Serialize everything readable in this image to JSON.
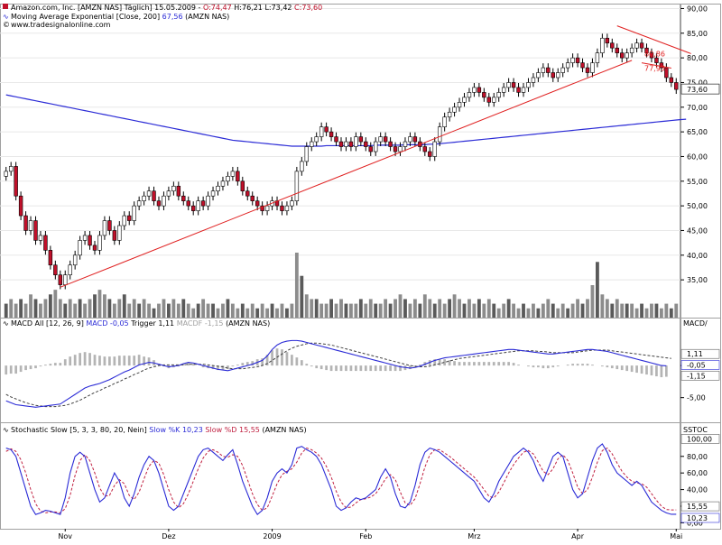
{
  "header": {
    "main_title_prefix": "Amazon.com, Inc. [AMZN NAS]  Täglich] 15.05.2009 - ",
    "main_o": "O:74,47",
    "main_h": "H:76,21",
    "main_l": "L:73,42",
    "main_c": "C:73,60",
    "ema_label": "Moving Average Exponential [Close, 200]",
    "ema_value": "67,56",
    "ema_symbol": "(AMZN NAS)",
    "website": "www.tradesignalonline.com",
    "macd_label": "MACD All [12, 26, 9]",
    "macd_value": "MACD -0,05",
    "macd_trigger": "Trigger 1,11",
    "macd_macdf": "MACDF -1,15",
    "macd_symbol": "(AMZN NAS)",
    "stoch_label": "Stochastic Slow [5, 3, 3, 80, 20, Nein]",
    "stoch_k": "Slow %K 10,23",
    "stoch_d": "Slow %D 15,55",
    "stoch_symbol": "(AMZN NAS)",
    "macd_axis_title": "MACD/",
    "stoch_axis_title": "SSTOC"
  },
  "colors": {
    "up_candle": "#ffffff",
    "down_candle": "#c0102a",
    "candle_outline": "#000000",
    "ema_line": "#2b2bd6",
    "trend_line": "#e02020",
    "macd_line": "#2b2bd6",
    "trigger_line": "#404040",
    "stoch_k": "#2b2bd6",
    "stoch_d": "#c02040",
    "volume_bar": "#808080"
  },
  "chart_data": [
    {
      "type": "candlestick",
      "title": "Amazon.com, Inc. [AMZN NAS] Täglich",
      "x_labels": [
        "Nov",
        "Dez",
        "2009",
        "Feb",
        "Mrz",
        "Apr",
        "Mai"
      ],
      "x_label_positions": [
        12,
        33,
        54,
        73,
        95,
        116,
        136
      ],
      "y_ticks": [
        35,
        40,
        45,
        50,
        55,
        60,
        65,
        70,
        75,
        80,
        85,
        90
      ],
      "y_tick_labels": [
        "35,00",
        "40,00",
        "45,00",
        "50,00",
        "55,00",
        "60,00",
        "65,00",
        "70,00",
        "75,00",
        "80,00",
        "85,00",
        "90,00"
      ],
      "ylim": [
        31,
        91
      ],
      "last_price_label": "73,60",
      "annotations": [
        {
          "text": "80,86",
          "value": 80.86
        },
        {
          "text": "77,93",
          "value": 77.93
        }
      ],
      "close": [
        57,
        58,
        52,
        48,
        45,
        47,
        43,
        44,
        41,
        38,
        36,
        34,
        36,
        38,
        40,
        43,
        44,
        42,
        41,
        44,
        47,
        45,
        43,
        46,
        48,
        47,
        50,
        51,
        52,
        53,
        51,
        50,
        52,
        53,
        54,
        52,
        51,
        50,
        49,
        51,
        50,
        52,
        53,
        54,
        55,
        56,
        57,
        55,
        53,
        52,
        51,
        50,
        49,
        50,
        51,
        50,
        49,
        50,
        51,
        57,
        59,
        62,
        63,
        64,
        66,
        65,
        64,
        63,
        62,
        63,
        62,
        64,
        63,
        62,
        61,
        63,
        64,
        63,
        62,
        61,
        62,
        63,
        64,
        63,
        62,
        61,
        60,
        63,
        66,
        68,
        69,
        70,
        71,
        72,
        73,
        74,
        73,
        72,
        71,
        72,
        73,
        74,
        75,
        74,
        73,
        74,
        75,
        76,
        77,
        78,
        77,
        76,
        77,
        78,
        79,
        80,
        79,
        78,
        77,
        79,
        81,
        84,
        83,
        82,
        81,
        80,
        81,
        82,
        83,
        82,
        81,
        80,
        79,
        78,
        76,
        75,
        73.6
      ],
      "volume": [
        3,
        4,
        3,
        4,
        3,
        5,
        4,
        3,
        4,
        5,
        6,
        4,
        3,
        4,
        3,
        4,
        3,
        4,
        5,
        6,
        5,
        4,
        3,
        4,
        5,
        3,
        4,
        3,
        4,
        3,
        2,
        3,
        4,
        3,
        4,
        3,
        4,
        3,
        2,
        3,
        4,
        3,
        3,
        2,
        3,
        4,
        3,
        2,
        3,
        2,
        3,
        2,
        3,
        2,
        3,
        2,
        3,
        2,
        3,
        14,
        9,
        5,
        4,
        4,
        3,
        3,
        4,
        3,
        4,
        3,
        3,
        3,
        4,
        3,
        4,
        3,
        3,
        4,
        3,
        4,
        5,
        4,
        3,
        4,
        3,
        5,
        4,
        3,
        4,
        3,
        4,
        5,
        4,
        3,
        4,
        3,
        4,
        3,
        4,
        3,
        2,
        3,
        4,
        3,
        2,
        3,
        2,
        3,
        2,
        3,
        4,
        3,
        2,
        3,
        2,
        3,
        4,
        3,
        4,
        7,
        12,
        5,
        4,
        3,
        4,
        3,
        3,
        3,
        2,
        3,
        2,
        3,
        3,
        2,
        3,
        2,
        3
      ],
      "ema200_series_name": "Moving Average Exponential [Close, 200]",
      "ema200": [
        72.5,
        72.3,
        72.1,
        71.9,
        71.7,
        71.5,
        71.3,
        71.1,
        70.9,
        70.7,
        70.5,
        70.3,
        70.1,
        69.9,
        69.7,
        69.5,
        69.3,
        69.1,
        68.9,
        68.7,
        68.5,
        68.3,
        68.1,
        67.9,
        67.7,
        67.5,
        67.3,
        67.1,
        66.9,
        66.7,
        66.5,
        66.3,
        66.1,
        65.9,
        65.7,
        65.5,
        65.3,
        65.1,
        64.9,
        64.7,
        64.5,
        64.3,
        64.1,
        63.9,
        63.7,
        63.5,
        63.3,
        63.2,
        63.1,
        63.0,
        62.9,
        62.8,
        62.7,
        62.6,
        62.5,
        62.4,
        62.3,
        62.2,
        62.1,
        62.1,
        62.1,
        62.1,
        62.1,
        62.1,
        62.1,
        62.2,
        62.2,
        62.2,
        62.2,
        62.2,
        62.2,
        62.2,
        62.2,
        62.2,
        62.2,
        62.3,
        62.3,
        62.3,
        62.3,
        62.3,
        62.3,
        62.4,
        62.4,
        62.4,
        62.4,
        62.4,
        62.5,
        62.5,
        62.6,
        62.7,
        62.8,
        62.9,
        63.0,
        63.1,
        63.2,
        63.3,
        63.4,
        63.5,
        63.6,
        63.7,
        63.8,
        63.9,
        64.0,
        64.1,
        64.2,
        64.3,
        64.4,
        64.5,
        64.6,
        64.7,
        64.8,
        64.9,
        65.0,
        65.1,
        65.2,
        65.3,
        65.4,
        65.5,
        65.6,
        65.7,
        65.8,
        65.9,
        66.0,
        66.1,
        66.2,
        66.3,
        66.4,
        66.5,
        66.6,
        66.7,
        66.8,
        66.9,
        67.0,
        67.1,
        67.2,
        67.3,
        67.4,
        67.5,
        67.56
      ],
      "trendlines": [
        {
          "x1": 11,
          "y1": 33.5,
          "x2": 127,
          "y2": 79.5
        },
        {
          "x1": 124,
          "y1": 86.5,
          "x2": 139,
          "y2": 80.86
        },
        {
          "x1": 129,
          "y1": 79.0,
          "x2": 135,
          "y2": 77.93
        }
      ]
    },
    {
      "type": "line",
      "title": "MACD All [12, 26, 9]",
      "y_ticks": [
        -5,
        0
      ],
      "y_tick_labels": [
        "-5,00",
        "0"
      ],
      "ylim": [
        -8,
        5.5
      ],
      "value_labels": [
        "1,11",
        "-0,05",
        "-1,15"
      ],
      "series": [
        {
          "name": "MACD",
          "values": [
            -5.5,
            -5.8,
            -6.1,
            -6.2,
            -6.3,
            -6.4,
            -6.5,
            -6.4,
            -6.3,
            -6.2,
            -6.1,
            -6.0,
            -5.5,
            -5.0,
            -4.5,
            -4.0,
            -3.5,
            -3.2,
            -3.0,
            -2.8,
            -2.5,
            -2.2,
            -1.8,
            -1.4,
            -1.0,
            -0.7,
            -0.3,
            0.1,
            0.3,
            0.5,
            0.4,
            0.2,
            0.0,
            -0.2,
            -0.1,
            0.0,
            0.3,
            0.5,
            0.4,
            0.2,
            0.0,
            -0.2,
            -0.4,
            -0.6,
            -0.7,
            -0.8,
            -0.6,
            -0.4,
            -0.2,
            0.0,
            0.2,
            0.5,
            0.8,
            1.5,
            2.5,
            3.2,
            3.6,
            3.8,
            3.9,
            3.9,
            3.8,
            3.6,
            3.4,
            3.2,
            3.0,
            2.8,
            2.6,
            2.4,
            2.2,
            2.0,
            1.8,
            1.6,
            1.4,
            1.2,
            1.0,
            0.8,
            0.6,
            0.4,
            0.2,
            0.0,
            -0.2,
            -0.3,
            -0.4,
            -0.3,
            -0.1,
            0.2,
            0.5,
            0.8,
            1.0,
            1.2,
            1.3,
            1.4,
            1.5,
            1.6,
            1.7,
            1.8,
            1.9,
            2.0,
            2.1,
            2.2,
            2.3,
            2.4,
            2.5,
            2.5,
            2.4,
            2.3,
            2.2,
            2.1,
            2.0,
            1.9,
            1.8,
            1.8,
            1.9,
            2.0,
            2.1,
            2.2,
            2.3,
            2.4,
            2.5,
            2.5,
            2.4,
            2.3,
            2.2,
            2.0,
            1.8,
            1.6,
            1.4,
            1.2,
            1.0,
            0.8,
            0.6,
            0.4,
            0.2,
            0.0,
            -0.05
          ]
        },
        {
          "name": "Trigger",
          "values": [
            -4.5,
            -4.9,
            -5.2,
            -5.5,
            -5.8,
            -6.0,
            -6.2,
            -6.3,
            -6.4,
            -6.4,
            -6.4,
            -6.3,
            -6.2,
            -6.0,
            -5.7,
            -5.4,
            -5.0,
            -4.6,
            -4.2,
            -3.9,
            -3.5,
            -3.2,
            -2.8,
            -2.5,
            -2.1,
            -1.8,
            -1.4,
            -1.1,
            -0.7,
            -0.4,
            -0.2,
            0.0,
            0.1,
            0.1,
            0.1,
            0.1,
            0.1,
            0.2,
            0.2,
            0.2,
            0.2,
            0.1,
            0.0,
            -0.1,
            -0.2,
            -0.4,
            -0.5,
            -0.5,
            -0.5,
            -0.4,
            -0.3,
            -0.2,
            0.0,
            0.3,
            0.8,
            1.3,
            1.8,
            2.3,
            2.7,
            3.0,
            3.2,
            3.4,
            3.5,
            3.5,
            3.4,
            3.3,
            3.2,
            3.0,
            2.8,
            2.6,
            2.4,
            2.2,
            2.0,
            1.8,
            1.6,
            1.4,
            1.2,
            1.0,
            0.8,
            0.6,
            0.4,
            0.2,
            0.0,
            -0.1,
            -0.2,
            -0.2,
            -0.1,
            0.1,
            0.3,
            0.5,
            0.7,
            0.9,
            1.1,
            1.2,
            1.3,
            1.4,
            1.5,
            1.6,
            1.7,
            1.8,
            1.9,
            2.0,
            2.1,
            2.2,
            2.3,
            2.3,
            2.3,
            2.3,
            2.2,
            2.2,
            2.1,
            2.0,
            2.0,
            2.0,
            2.0,
            2.0,
            2.1,
            2.2,
            2.3,
            2.4,
            2.4,
            2.4,
            2.4,
            2.3,
            2.2,
            2.1,
            2.0,
            1.9,
            1.8,
            1.7,
            1.6,
            1.5,
            1.4,
            1.3,
            1.2,
            1.11
          ]
        }
      ]
    },
    {
      "type": "line",
      "title": "Stochastic Slow [5, 3, 3, 80, 20, Nein]",
      "y_ticks": [
        0,
        20,
        40,
        60,
        80
      ],
      "y_tick_labels": [
        "0,00",
        "20,00",
        "40,00",
        "60,00",
        "80,00"
      ],
      "ylim": [
        -5,
        108
      ],
      "value_labels": [
        "100,00",
        "15,55",
        "10,23"
      ],
      "series": [
        {
          "name": "Slow %K",
          "values": [
            90,
            88,
            80,
            60,
            40,
            20,
            10,
            12,
            15,
            14,
            12,
            10,
            30,
            60,
            80,
            85,
            80,
            60,
            40,
            25,
            30,
            45,
            60,
            50,
            30,
            20,
            35,
            55,
            70,
            80,
            75,
            60,
            40,
            20,
            15,
            20,
            35,
            50,
            65,
            80,
            88,
            90,
            85,
            80,
            75,
            82,
            88,
            70,
            50,
            35,
            20,
            10,
            15,
            30,
            50,
            60,
            65,
            60,
            70,
            90,
            92,
            88,
            85,
            80,
            70,
            55,
            40,
            20,
            15,
            18,
            25,
            30,
            28,
            30,
            35,
            40,
            55,
            65,
            55,
            35,
            20,
            18,
            25,
            45,
            70,
            85,
            90,
            88,
            85,
            80,
            75,
            70,
            65,
            60,
            55,
            50,
            40,
            30,
            25,
            35,
            50,
            60,
            70,
            80,
            85,
            90,
            85,
            75,
            60,
            50,
            65,
            80,
            85,
            80,
            60,
            40,
            30,
            35,
            55,
            75,
            90,
            95,
            85,
            70,
            60,
            55,
            50,
            45,
            50,
            45,
            35,
            25,
            20,
            15,
            12,
            10.23,
            10.23
          ]
        },
        {
          "name": "Slow %D",
          "values": [
            86,
            89,
            86,
            76,
            60,
            40,
            23,
            14,
            12,
            13,
            13,
            12,
            17,
            33,
            57,
            75,
            82,
            75,
            60,
            42,
            32,
            33,
            45,
            52,
            47,
            33,
            28,
            37,
            53,
            68,
            75,
            72,
            58,
            40,
            25,
            18,
            23,
            35,
            50,
            65,
            78,
            86,
            88,
            85,
            80,
            79,
            82,
            80,
            69,
            52,
            35,
            22,
            15,
            18,
            32,
            47,
            58,
            62,
            65,
            73,
            84,
            90,
            88,
            84,
            78,
            68,
            55,
            38,
            25,
            18,
            19,
            24,
            28,
            29,
            31,
            35,
            43,
            53,
            58,
            52,
            37,
            24,
            21,
            29,
            47,
            67,
            82,
            88,
            88,
            84,
            80,
            75,
            70,
            65,
            60,
            55,
            48,
            40,
            32,
            30,
            37,
            48,
            60,
            70,
            78,
            85,
            87,
            83,
            73,
            62,
            58,
            65,
            77,
            82,
            75,
            60,
            43,
            35,
            40,
            55,
            73,
            87,
            90,
            83,
            72,
            62,
            55,
            50,
            48,
            47,
            43,
            35,
            27,
            20,
            16,
            15.55,
            15.55
          ]
        }
      ]
    }
  ]
}
